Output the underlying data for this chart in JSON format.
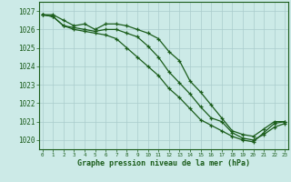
{
  "background_color": "#cceae7",
  "grid_color": "#aacccc",
  "line_color": "#1a5c1a",
  "title": "Graphe pression niveau de la mer (hPa)",
  "hours": [
    0,
    1,
    2,
    3,
    4,
    5,
    6,
    7,
    8,
    9,
    10,
    11,
    12,
    13,
    14,
    15,
    16,
    17,
    18,
    19,
    20,
    21,
    22,
    23
  ],
  "ylim": [
    1019.5,
    1027.5
  ],
  "yticks": [
    1020,
    1021,
    1022,
    1023,
    1024,
    1025,
    1026,
    1027
  ],
  "series1": [
    1026.8,
    1026.8,
    1026.5,
    1026.2,
    1026.3,
    1026.0,
    1026.3,
    1026.3,
    1026.2,
    1026.0,
    1025.8,
    1025.5,
    1024.8,
    1024.3,
    1023.2,
    1022.6,
    1021.9,
    1021.2,
    1020.5,
    1020.3,
    1020.2,
    1020.6,
    1021.0,
    1021.0
  ],
  "series2": [
    1026.8,
    1026.7,
    1026.2,
    1026.1,
    1026.0,
    1025.9,
    1026.0,
    1026.0,
    1025.8,
    1025.6,
    1025.1,
    1024.5,
    1023.7,
    1023.1,
    1022.5,
    1021.8,
    1021.2,
    1021.0,
    1020.4,
    1020.1,
    1020.0,
    1020.3,
    1020.7,
    1020.9
  ],
  "series3": [
    1026.8,
    1026.7,
    1026.2,
    1026.0,
    1025.9,
    1025.8,
    1025.7,
    1025.5,
    1025.0,
    1024.5,
    1024.0,
    1023.5,
    1022.8,
    1022.3,
    1021.7,
    1021.1,
    1020.8,
    1020.5,
    1020.2,
    1020.0,
    1019.9,
    1020.4,
    1020.9,
    1021.0
  ]
}
